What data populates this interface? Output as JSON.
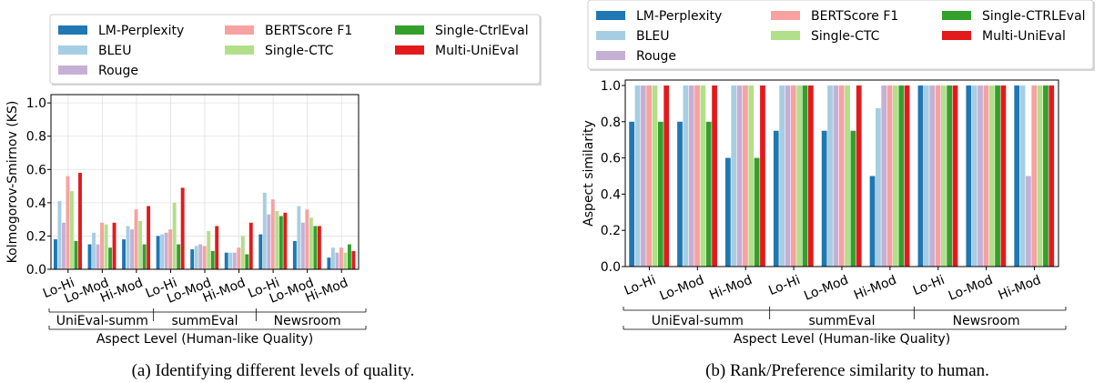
{
  "colors": {
    "LM-Perplexity": "#1f77b4",
    "BLEU": "#a6cee3",
    "Rouge": "#c5b0d5",
    "BERTScore F1": "#f7a1a1",
    "Single-CTC": "#b2df8a",
    "Single-Ctrl": "#33a02c",
    "Multi-UniEval": "#e31a1c"
  },
  "chart_data": [
    {
      "type": "bar",
      "panel": "a",
      "caption": "(a) Identifying different levels of quality.",
      "ylabel": "Kolmogorov-Smirnov (KS)",
      "xlabel": "Aspect Level (Human-like Quality)",
      "ylim": [
        0,
        1.05
      ],
      "yticks": [
        "0.0",
        "0.2",
        "0.4",
        "0.6",
        "0.8",
        "1.0"
      ],
      "grid": true,
      "legend_position": "top",
      "categories": [
        "Lo-Hi",
        "Lo-Mod",
        "Hi-Mod",
        "Lo-Hi",
        "Lo-Mod",
        "Hi-Mod",
        "Lo-Hi",
        "Lo-Mod",
        "Hi-Mod"
      ],
      "groups": [
        "UniEval-summ",
        "summEval",
        "Newsroom"
      ],
      "series": [
        {
          "name": "LM-Perplexity",
          "values": [
            0.18,
            0.15,
            0.18,
            0.2,
            0.12,
            0.1,
            0.21,
            0.17,
            0.07
          ]
        },
        {
          "name": "BLEU",
          "values": [
            0.41,
            0.22,
            0.26,
            0.21,
            0.14,
            0.1,
            0.46,
            0.38,
            0.13
          ]
        },
        {
          "name": "Rouge",
          "values": [
            0.28,
            0.15,
            0.24,
            0.22,
            0.15,
            0.1,
            0.33,
            0.28,
            0.1
          ]
        },
        {
          "name": "BERTScore F1",
          "values": [
            0.56,
            0.28,
            0.36,
            0.24,
            0.14,
            0.13,
            0.42,
            0.36,
            0.13
          ]
        },
        {
          "name": "Single-CTC",
          "values": [
            0.47,
            0.27,
            0.29,
            0.4,
            0.23,
            0.2,
            0.35,
            0.31,
            0.1
          ]
        },
        {
          "name": "Single-CtrlEval",
          "values": [
            0.17,
            0.13,
            0.15,
            0.15,
            0.11,
            0.09,
            0.32,
            0.26,
            0.15
          ]
        },
        {
          "name": "Multi-UniEval",
          "values": [
            0.58,
            0.28,
            0.38,
            0.49,
            0.26,
            0.28,
            0.34,
            0.26,
            0.11
          ]
        }
      ]
    },
    {
      "type": "bar",
      "panel": "b",
      "caption": "(b) Rank/Preference similarity to human.",
      "ylabel": "Aspect similarity",
      "xlabel": "Aspect Level (Human-like Quality)",
      "ylim": [
        0,
        1.03
      ],
      "yticks": [
        "0.0",
        "0.2",
        "0.4",
        "0.6",
        "0.8",
        "1.0"
      ],
      "grid": false,
      "legend_position": "top",
      "categories": [
        "Lo-Hi",
        "Lo-Mod",
        "Hi-Mod",
        "Lo-Hi",
        "Lo-Mod",
        "Hi-Mod",
        "Lo-Hi",
        "Lo-Mod",
        "Hi-Mod"
      ],
      "groups": [
        "UniEval-summ",
        "summEval",
        "Newsroom"
      ],
      "series": [
        {
          "name": "LM-Perplexity",
          "values": [
            0.8,
            0.8,
            0.6,
            0.75,
            0.75,
            0.5,
            1.0,
            1.0,
            1.0
          ]
        },
        {
          "name": "BLEU",
          "values": [
            1.0,
            1.0,
            1.0,
            1.0,
            1.0,
            0.875,
            1.0,
            1.0,
            1.0
          ]
        },
        {
          "name": "Rouge",
          "values": [
            1.0,
            1.0,
            1.0,
            1.0,
            1.0,
            1.0,
            1.0,
            1.0,
            0.5
          ]
        },
        {
          "name": "BERTScore F1",
          "values": [
            1.0,
            1.0,
            1.0,
            1.0,
            1.0,
            1.0,
            1.0,
            1.0,
            1.0
          ]
        },
        {
          "name": "Single-CTC",
          "values": [
            1.0,
            1.0,
            1.0,
            1.0,
            1.0,
            1.0,
            1.0,
            1.0,
            1.0
          ]
        },
        {
          "name": "Single-CTRLEval",
          "values": [
            0.8,
            0.8,
            0.6,
            1.0,
            0.75,
            1.0,
            1.0,
            1.0,
            1.0
          ]
        },
        {
          "name": "Multi-UniEval",
          "values": [
            1.0,
            1.0,
            1.0,
            1.0,
            1.0,
            1.0,
            1.0,
            1.0,
            1.0
          ]
        }
      ]
    }
  ]
}
